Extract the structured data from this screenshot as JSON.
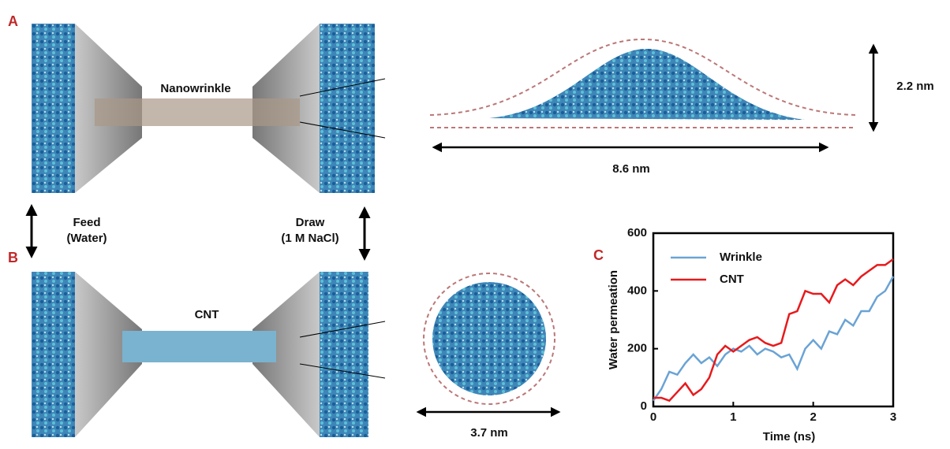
{
  "panels": {
    "a": "A",
    "b": "B",
    "c": "C"
  },
  "labels": {
    "nanowrinkle": "Nanowrinkle",
    "cnt": "CNT",
    "feed": "Feed",
    "feed_sub": "(Water)",
    "draw": "Draw",
    "draw_sub": "(1 M NaCl)",
    "height": "2.2 nm",
    "width": "8.6 nm",
    "diameter": "3.7 nm"
  },
  "chart_data": {
    "type": "line",
    "xlabel": "Time (ns)",
    "ylabel": "Water permeation",
    "x": [
      0,
      0.1,
      0.2,
      0.3,
      0.4,
      0.5,
      0.6,
      0.7,
      0.8,
      0.9,
      1.0,
      1.1,
      1.2,
      1.3,
      1.4,
      1.5,
      1.6,
      1.7,
      1.8,
      1.9,
      2.0,
      2.1,
      2.2,
      2.3,
      2.4,
      2.5,
      2.6,
      2.7,
      2.8,
      2.9,
      3.0
    ],
    "series": [
      {
        "name": "Wrinkle",
        "color": "#6aa3d5",
        "values": [
          20,
          60,
          120,
          110,
          150,
          180,
          150,
          170,
          140,
          180,
          200,
          190,
          210,
          180,
          200,
          190,
          170,
          180,
          130,
          200,
          230,
          200,
          260,
          250,
          300,
          280,
          330,
          330,
          380,
          400,
          450
        ]
      },
      {
        "name": "CNT",
        "color": "#e8191c",
        "values": [
          30,
          30,
          20,
          50,
          80,
          40,
          60,
          100,
          180,
          210,
          190,
          210,
          230,
          240,
          220,
          210,
          220,
          320,
          330,
          400,
          390,
          390,
          360,
          420,
          440,
          420,
          450,
          470,
          490,
          490,
          510
        ]
      }
    ],
    "xlim": [
      0,
      3
    ],
    "ylim": [
      0,
      600
    ],
    "xticks": [
      0,
      1,
      2,
      3
    ],
    "yticks": [
      0,
      200,
      400,
      600
    ],
    "legend": "upper left"
  }
}
